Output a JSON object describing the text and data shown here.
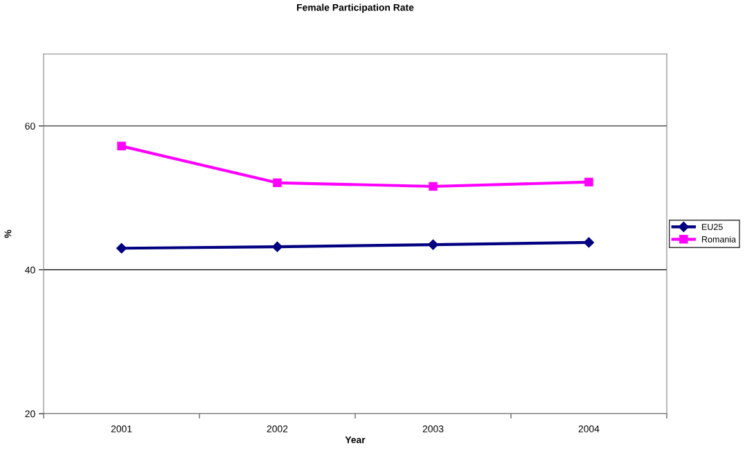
{
  "chart_data": {
    "type": "line",
    "title": "Female Participation Rate",
    "xlabel": "Year",
    "ylabel": "%",
    "categories": [
      "2001",
      "2002",
      "2003",
      "2004"
    ],
    "series": [
      {
        "name": "EU25",
        "color": "#000080",
        "values": [
          43.0,
          43.2,
          43.5,
          43.8
        ],
        "marker": "diamond"
      },
      {
        "name": "Romania",
        "color": "#ff00ff",
        "values": [
          57.2,
          52.1,
          51.6,
          52.2
        ],
        "marker": "square"
      }
    ],
    "ylim": [
      20,
      70
    ],
    "yticks": [
      20,
      40,
      60
    ],
    "grid": "y",
    "legend": "right",
    "line_style": "solid"
  }
}
